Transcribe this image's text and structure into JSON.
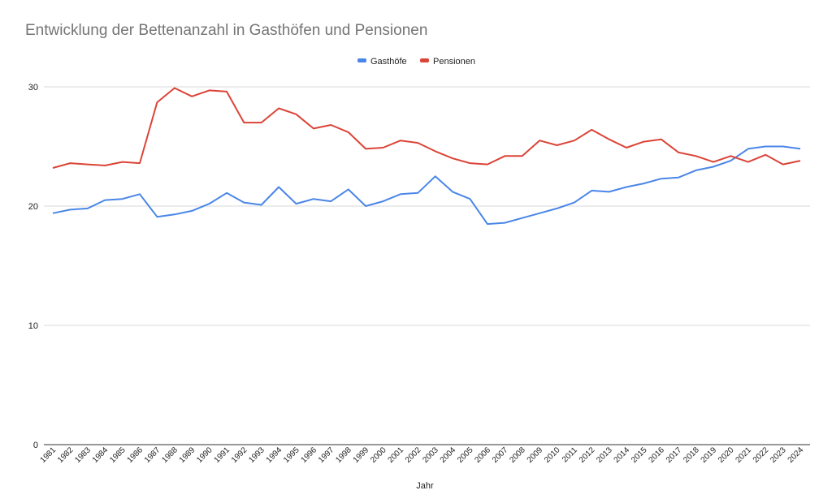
{
  "chart_data": {
    "type": "line",
    "title": "Entwicklung der Bettenanzahl in Gasthöfen und Pensionen",
    "xlabel": "Jahr",
    "ylabel": "",
    "ylim": [
      0,
      30
    ],
    "yticks": [
      0,
      10,
      20,
      30
    ],
    "grid": true,
    "legend_position": "top-center",
    "categories": [
      "1981",
      "1982",
      "1983",
      "1984",
      "1985",
      "1986",
      "1987",
      "1988",
      "1989",
      "1990",
      "1991",
      "1992",
      "1993",
      "1994",
      "1995",
      "1996",
      "1997",
      "1998",
      "1999",
      "2000",
      "2001",
      "2002",
      "2003",
      "2004",
      "2005",
      "2006",
      "2007",
      "2008",
      "2009",
      "2010",
      "2011",
      "2012",
      "2013",
      "2014",
      "2015",
      "2016",
      "2017",
      "2018",
      "2019",
      "2020",
      "2021",
      "2022",
      "2023",
      "2024"
    ],
    "series": [
      {
        "name": "Gasthöfe",
        "color": "#4a86e8",
        "values": [
          19.4,
          19.7,
          19.8,
          20.5,
          20.6,
          21.0,
          19.1,
          19.3,
          19.6,
          20.2,
          21.1,
          20.3,
          20.1,
          21.6,
          20.2,
          20.6,
          20.4,
          21.4,
          20.0,
          20.4,
          21.0,
          21.1,
          22.5,
          21.2,
          20.6,
          18.5,
          18.6,
          19.0,
          19.4,
          19.8,
          20.3,
          21.3,
          21.2,
          21.6,
          21.9,
          22.3,
          22.4,
          23.0,
          23.3,
          23.8,
          24.8,
          25.0,
          25.0,
          24.8
        ]
      },
      {
        "name": "Pensionen",
        "color": "#db4437",
        "values": [
          23.2,
          23.6,
          23.5,
          23.4,
          23.7,
          23.6,
          28.7,
          29.9,
          29.2,
          29.7,
          29.6,
          27.0,
          27.0,
          28.2,
          27.7,
          26.5,
          26.8,
          26.2,
          24.8,
          24.9,
          25.5,
          25.3,
          24.6,
          24.0,
          23.6,
          23.5,
          24.2,
          24.2,
          25.5,
          25.1,
          25.5,
          26.4,
          25.6,
          24.9,
          25.4,
          25.6,
          24.5,
          24.2,
          23.7,
          24.2,
          23.7,
          24.3,
          23.5,
          23.8
        ]
      }
    ]
  }
}
